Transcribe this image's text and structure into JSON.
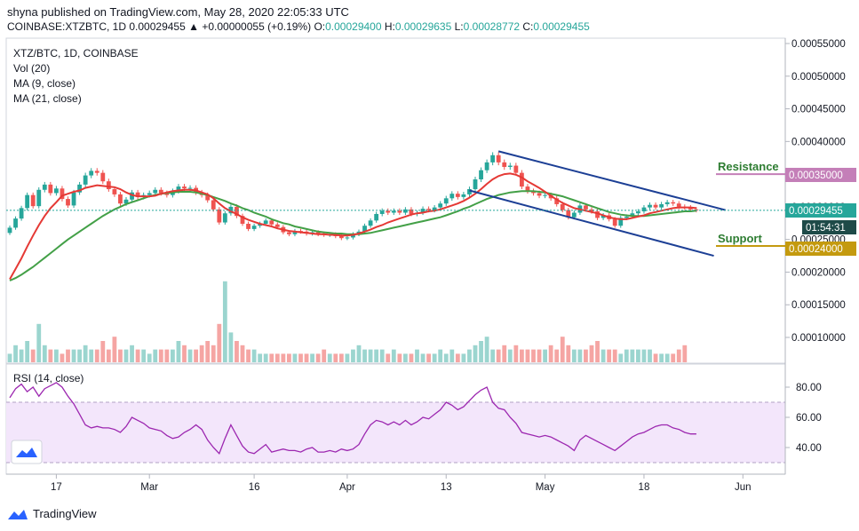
{
  "header": {
    "published": "shyna published on TradingView.com, May 28, 2020 22:05:33 UTC",
    "symbol": "COINBASE:XTZBTC, 1D",
    "last": "0.00029455",
    "change": "▲ +0.00000055 (+0.19%)",
    "o_label": "O:",
    "o_value": "0.00029400",
    "h_label": "H:",
    "h_value": "0.00029635",
    "l_label": "L:",
    "l_value": "0.00028772",
    "c_label": "C:",
    "c_value": "0.00029455"
  },
  "legend": {
    "title": "XTZ/BTC, 1D, COINBASE",
    "vol": "Vol (20)",
    "ma9": "MA (9, close)",
    "ma21": "MA (21, close)",
    "rsi": "RSI (14, close)"
  },
  "annotations": {
    "resistance": "Resistance",
    "support": "Support",
    "resistance_price": "0.00035000",
    "support_price": "0.00024000",
    "last_price": "0.00029455",
    "countdown": "01:54:31"
  },
  "colors": {
    "up": "#26a69a",
    "down": "#ef5350",
    "ma9": "#e53935",
    "ma21": "#43a047",
    "channel": "#1c3f95",
    "rsi": "#9c27b0",
    "resistance": "#2e7d32",
    "support": "#2e7d32",
    "resistance_tag": "#c47fb8",
    "support_tag": "#c49a0f",
    "last_tag": "#26a69a"
  },
  "footer": {
    "brand": "TradingView",
    "logo_icon": "tradingview-logo-icon"
  },
  "chart_data": {
    "type": "candlestick",
    "title": "XTZ/BTC, 1D, COINBASE",
    "price_axis": {
      "ticks": [
        "0.00055000",
        "0.00050000",
        "0.00045000",
        "0.00040000",
        "0.00035000",
        "0.00030000",
        "0.00025000",
        "0.00020000",
        "0.00015000",
        "0.00010000"
      ],
      "tick_values": [
        0.00055,
        0.0005,
        0.00045,
        0.0004,
        0.00035,
        0.0003,
        0.00025,
        0.0002,
        0.00015,
        0.0001
      ]
    },
    "time_axis": {
      "labels": [
        "17",
        "Mar",
        "16",
        "Apr",
        "13",
        "May",
        "18",
        "Jun"
      ],
      "label_day_index": [
        8,
        24,
        42,
        58,
        75,
        92,
        109,
        126
      ]
    },
    "rsi_axis": {
      "ticks": [
        "80.00",
        "60.00",
        "40.00"
      ],
      "tick_values": [
        80,
        60,
        40
      ],
      "band": [
        30,
        70
      ]
    },
    "closes": [
      0.000268,
      0.000282,
      0.000298,
      0.000318,
      0.000301,
      0.000326,
      0.000334,
      0.000321,
      0.000328,
      0.000312,
      0.000302,
      0.000322,
      0.000334,
      0.000348,
      0.000355,
      0.000352,
      0.000339,
      0.000327,
      0.000319,
      0.000305,
      0.000311,
      0.000322,
      0.000315,
      0.000318,
      0.000321,
      0.000326,
      0.000321,
      0.000318,
      0.000324,
      0.000331,
      0.000328,
      0.000329,
      0.000322,
      0.000318,
      0.00031,
      0.000296,
      0.000276,
      0.00029,
      0.0003,
      0.000286,
      0.000274,
      0.000266,
      0.000271,
      0.000274,
      0.000279,
      0.000273,
      0.000269,
      0.000261,
      0.000258,
      0.000263,
      0.000262,
      0.000259,
      0.000261,
      0.000258,
      0.000257,
      0.000258,
      0.000255,
      0.000252,
      0.000253,
      0.000258,
      0.000262,
      0.000271,
      0.000279,
      0.000289,
      0.000294,
      0.000291,
      0.000294,
      0.000291,
      0.000296,
      0.000289,
      0.000291,
      0.000297,
      0.000295,
      0.000299,
      0.000305,
      0.000313,
      0.00032,
      0.000315,
      0.000319,
      0.000327,
      0.000342,
      0.000356,
      0.000368,
      0.000379,
      0.000368,
      0.000361,
      0.000363,
      0.000352,
      0.000331,
      0.000324,
      0.000321,
      0.000317,
      0.000318,
      0.000313,
      0.000304,
      0.000295,
      0.000284,
      0.000291,
      0.000302,
      0.000296,
      0.000293,
      0.000283,
      0.000287,
      0.000281,
      0.000271,
      0.000283,
      0.000285,
      0.00029,
      0.000293,
      0.000299,
      0.000303,
      0.000299,
      0.000304,
      0.000307,
      0.000305,
      0.0003,
      0.000299,
      0.000296,
      0.000295
    ],
    "ma9": [
      0.000189,
      0.000205,
      0.000221,
      0.000239,
      0.000256,
      0.000272,
      0.000286,
      0.000298,
      0.000307,
      0.000317,
      0.00032,
      0.000323,
      0.000325,
      0.000329,
      0.000331,
      0.000333,
      0.000332,
      0.000331,
      0.00033,
      0.000327,
      0.000322,
      0.000318,
      0.000316,
      0.000316,
      0.000316,
      0.000317,
      0.00032,
      0.000322,
      0.000324,
      0.000325,
      0.000326,
      0.000326,
      0.000325,
      0.000322,
      0.000319,
      0.000313,
      0.000305,
      0.000298,
      0.000293,
      0.000289,
      0.000284,
      0.00028,
      0.000277,
      0.000274,
      0.000272,
      0.00027,
      0.000267,
      0.000265,
      0.000263,
      0.000262,
      0.000261,
      0.00026,
      0.000259,
      0.000258,
      0.000258,
      0.000257,
      0.000257,
      0.000256,
      0.000256,
      0.000257,
      0.000259,
      0.000262,
      0.000265,
      0.000269,
      0.000272,
      0.000276,
      0.000279,
      0.000282,
      0.000285,
      0.000288,
      0.00029,
      0.000291,
      0.000293,
      0.000294,
      0.000296,
      0.000299,
      0.000302,
      0.000305,
      0.000309,
      0.000314,
      0.00032,
      0.000327,
      0.000335,
      0.000342,
      0.000347,
      0.00035,
      0.000351,
      0.000349,
      0.000345,
      0.000339,
      0.000334,
      0.000329,
      0.000323,
      0.000317,
      0.000311,
      0.000306,
      0.000302,
      0.000298,
      0.000296,
      0.000294,
      0.000292,
      0.00029,
      0.000287,
      0.000284,
      0.000282,
      0.000281,
      0.000281,
      0.000283,
      0.000285,
      0.000287,
      0.00029,
      0.000292,
      0.000294,
      0.000296,
      0.000298,
      0.000299,
      0.000299,
      0.000299,
      0.000298
    ],
    "ma21": [
      0.000187,
      0.000191,
      0.000196,
      0.000202,
      0.000208,
      0.000215,
      0.000222,
      0.000229,
      0.000236,
      0.000243,
      0.00025,
      0.000256,
      0.000262,
      0.000268,
      0.000274,
      0.00028,
      0.000286,
      0.000291,
      0.000296,
      0.0003,
      0.000304,
      0.000307,
      0.00031,
      0.000313,
      0.000316,
      0.000318,
      0.00032,
      0.000321,
      0.000322,
      0.000323,
      0.000323,
      0.000323,
      0.000322,
      0.00032,
      0.000318,
      0.000315,
      0.000312,
      0.000309,
      0.000305,
      0.000302,
      0.000298,
      0.000295,
      0.000291,
      0.000288,
      0.000285,
      0.000281,
      0.000278,
      0.000275,
      0.000273,
      0.00027,
      0.000268,
      0.000266,
      0.000264,
      0.000262,
      0.000261,
      0.00026,
      0.000259,
      0.000259,
      0.000258,
      0.000258,
      0.000258,
      0.000259,
      0.00026,
      0.000262,
      0.000264,
      0.000266,
      0.000268,
      0.00027,
      0.000272,
      0.000274,
      0.000276,
      0.000278,
      0.00028,
      0.000282,
      0.000284,
      0.000287,
      0.00029,
      0.000293,
      0.000297,
      0.0003,
      0.000304,
      0.000308,
      0.000312,
      0.000315,
      0.000318,
      0.00032,
      0.000322,
      0.000323,
      0.000324,
      0.000324,
      0.000324,
      0.000323,
      0.000322,
      0.00032,
      0.000318,
      0.000316,
      0.000313,
      0.00031,
      0.000307,
      0.000304,
      0.000301,
      0.000298,
      0.000295,
      0.000292,
      0.00029,
      0.000288,
      0.000287,
      0.000286,
      0.000286,
      0.000286,
      0.000287,
      0.000288,
      0.000289,
      0.00029,
      0.000291,
      0.000292,
      0.000293,
      0.000293,
      0.000294
    ],
    "volume_relative": [
      0.2,
      0.4,
      0.3,
      0.5,
      0.3,
      0.9,
      0.4,
      0.3,
      0.3,
      0.2,
      0.3,
      0.3,
      0.3,
      0.4,
      0.3,
      0.3,
      0.5,
      0.3,
      0.6,
      0.3,
      0.3,
      0.4,
      0.3,
      0.3,
      0.2,
      0.3,
      0.3,
      0.3,
      0.3,
      0.5,
      0.4,
      0.3,
      0.3,
      0.4,
      0.5,
      0.4,
      0.9,
      1.9,
      0.7,
      0.5,
      0.4,
      0.3,
      0.3,
      0.2,
      0.2,
      0.2,
      0.2,
      0.2,
      0.2,
      0.2,
      0.2,
      0.2,
      0.2,
      0.2,
      0.3,
      0.2,
      0.2,
      0.2,
      0.2,
      0.3,
      0.4,
      0.3,
      0.3,
      0.3,
      0.3,
      0.2,
      0.3,
      0.2,
      0.2,
      0.2,
      0.3,
      0.2,
      0.2,
      0.2,
      0.3,
      0.2,
      0.3,
      0.2,
      0.2,
      0.3,
      0.4,
      0.5,
      0.6,
      0.3,
      0.3,
      0.4,
      0.3,
      0.4,
      0.3,
      0.3,
      0.3,
      0.3,
      0.3,
      0.4,
      0.3,
      0.6,
      0.4,
      0.3,
      0.3,
      0.3,
      0.4,
      0.5,
      0.3,
      0.3,
      0.3,
      0.2,
      0.3,
      0.3,
      0.3,
      0.3,
      0.3,
      0.2,
      0.2,
      0.2,
      0.2,
      0.3,
      0.4
    ],
    "rsi": [
      73,
      79,
      82,
      77,
      80,
      74,
      79,
      81,
      83,
      80,
      74,
      69,
      62,
      55,
      53,
      54,
      53,
      53,
      52,
      50,
      54,
      60,
      58,
      56,
      53,
      52,
      51,
      48,
      46,
      47,
      50,
      52,
      55,
      52,
      45,
      40,
      36,
      46,
      55,
      48,
      41,
      37,
      36,
      39,
      42,
      37,
      38,
      39,
      38,
      38,
      37,
      39,
      40,
      37,
      37,
      38,
      37,
      39,
      38,
      39,
      42,
      49,
      55,
      58,
      57,
      55,
      57,
      55,
      58,
      55,
      57,
      60,
      59,
      62,
      65,
      70,
      68,
      65,
      67,
      71,
      75,
      78,
      80,
      70,
      66,
      65,
      60,
      56,
      50,
      49,
      48,
      47,
      48,
      47,
      45,
      43,
      41,
      38,
      45,
      48,
      46,
      44,
      42,
      40,
      38,
      41,
      44,
      47,
      49,
      50,
      52,
      54,
      55,
      55,
      53,
      52,
      50,
      49,
      49
    ],
    "channel_upper": {
      "from": [
        0.000385,
        84
      ],
      "to": [
        0.000295,
        123
      ]
    },
    "channel_lower": {
      "from": [
        0.000325,
        79
      ],
      "to": [
        0.000225,
        121
      ]
    },
    "resistance_level": 0.00035,
    "support_level": 0.00024,
    "last_price": 0.00029455
  }
}
